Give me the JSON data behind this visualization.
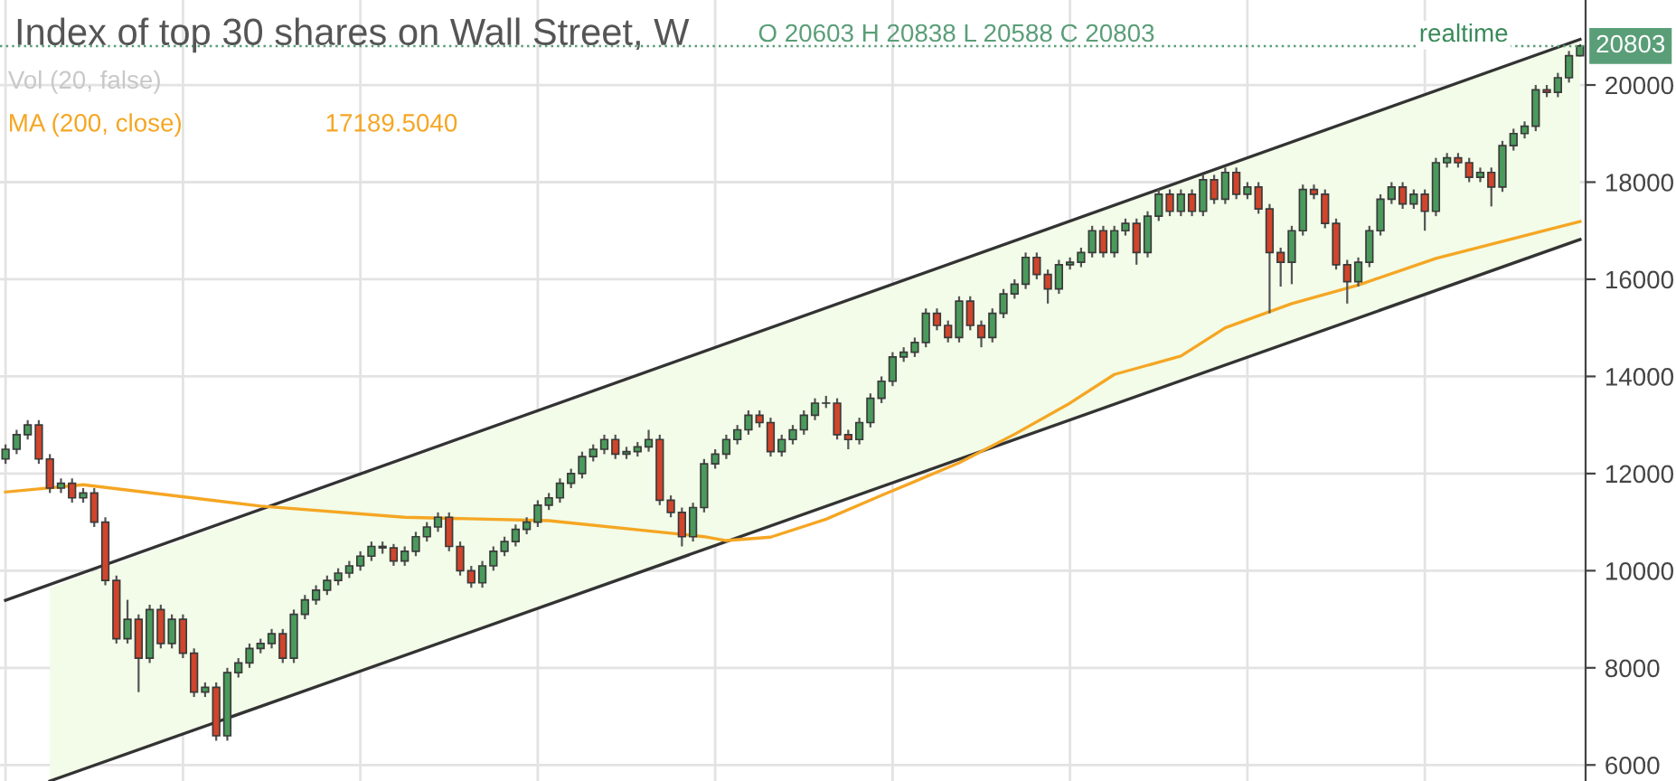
{
  "chart_data": {
    "type": "candlestick",
    "title": "Index of top 30 shares on Wall Street, W",
    "annotations": [
      "O 20603 H 20838 L 20588 C 20803",
      "Vol (20, false)",
      "17189.5040",
      "realtime"
    ],
    "categories": [
      null,
      null,
      null,
      null,
      null,
      null,
      null,
      null,
      null,
      null,
      null,
      null,
      null,
      null,
      null,
      null,
      null,
      null,
      null,
      null,
      null,
      null,
      null,
      null,
      null,
      null,
      null,
      null,
      null,
      null,
      null,
      null,
      null,
      null,
      null,
      null,
      null,
      null,
      null,
      null,
      null,
      null,
      null,
      null,
      null,
      null,
      null,
      null,
      null,
      null,
      null,
      null,
      null,
      null,
      null,
      null,
      null,
      null,
      null,
      null,
      null,
      null,
      null,
      null,
      null,
      null,
      null,
      null,
      null,
      null,
      null,
      null,
      null,
      null,
      null,
      null,
      null,
      null,
      null,
      null,
      null,
      null,
      null,
      null,
      null,
      null,
      null,
      null,
      null,
      null,
      null,
      null,
      null,
      null,
      null,
      null,
      null,
      null,
      null,
      null,
      null,
      null,
      null,
      null,
      null,
      null,
      null,
      null,
      null,
      null,
      null,
      null,
      null,
      null,
      null,
      null,
      null,
      null,
      null,
      null,
      null,
      null,
      null,
      null,
      null,
      null,
      null,
      null,
      null,
      null,
      null,
      null,
      null,
      null,
      null,
      null,
      null,
      null,
      null,
      null,
      null,
      null,
      null
    ],
    "ylim": [
      5670,
      21750
    ],
    "yticks": [
      6000,
      8000,
      10000,
      12000,
      14000,
      16000,
      18000,
      20000
    ],
    "tick_labels": "y",
    "grid": true,
    "legend": false,
    "colors": [
      "#4a9a5c",
      "#d0452b"
    ],
    "ref_lines": [
      {
        "axis": "y",
        "value": 20803,
        "label": "20803",
        "color": "#5a9e78",
        "line_style": "dotted"
      }
    ],
    "series": [
      {
        "type": "line",
        "color": "#333333",
        "values": [
          9390,
          null,
          null,
          null,
          null,
          null,
          null,
          null,
          null,
          null,
          null,
          null,
          null,
          null,
          null,
          null,
          null,
          null,
          null,
          null,
          null,
          null,
          null,
          null,
          null,
          null,
          null,
          null,
          null,
          null,
          null,
          null,
          null,
          null,
          null,
          null,
          null,
          null,
          null,
          null,
          null,
          null,
          null,
          null,
          null,
          null,
          null,
          null,
          null,
          null,
          null,
          null,
          null,
          null,
          null,
          null,
          null,
          null,
          null,
          null,
          null,
          null,
          null,
          null,
          null,
          null,
          null,
          null,
          null,
          null,
          null,
          null,
          null,
          null,
          null,
          null,
          null,
          null,
          null,
          null,
          null,
          null,
          null,
          null,
          null,
          null,
          null,
          null,
          null,
          null,
          null,
          null,
          null,
          null,
          null,
          null,
          null,
          null,
          null,
          null,
          null,
          null,
          null,
          null,
          null,
          null,
          null,
          null,
          null,
          null,
          null,
          null,
          null,
          null,
          null,
          null,
          null,
          null,
          null,
          null,
          null,
          null,
          null,
          null,
          null,
          null,
          null,
          null,
          null,
          null,
          null,
          null,
          null,
          null,
          null,
          null,
          null,
          null,
          null,
          null,
          null,
          null,
          20940
        ],
        "lower": [
          null,
          null,
          null,
          null,
          5670,
          null,
          null,
          null,
          null,
          null,
          null,
          null,
          null,
          null,
          null,
          null,
          null,
          null,
          null,
          null,
          null,
          null,
          null,
          null,
          null,
          null,
          null,
          null,
          null,
          null,
          null,
          null,
          null,
          null,
          null,
          null,
          null,
          null,
          null,
          null,
          null,
          null,
          null,
          null,
          null,
          null,
          null,
          null,
          null,
          null,
          null,
          null,
          null,
          null,
          null,
          null,
          null,
          null,
          null,
          null,
          null,
          null,
          null,
          null,
          null,
          null,
          null,
          null,
          null,
          null,
          null,
          null,
          null,
          null,
          null,
          null,
          null,
          null,
          null,
          null,
          null,
          null,
          null,
          null,
          null,
          null,
          null,
          null,
          null,
          null,
          null,
          null,
          null,
          null,
          null,
          null,
          null,
          null,
          null,
          null,
          null,
          null,
          null,
          null,
          null,
          null,
          null,
          null,
          null,
          null,
          null,
          null,
          null,
          null,
          null,
          null,
          null,
          null,
          null,
          null,
          null,
          null,
          null,
          null,
          null,
          null,
          null,
          null,
          null,
          null,
          null,
          null,
          null,
          null,
          null,
          null,
          null,
          null,
          null,
          null,
          null,
          null,
          16820
        ],
        "upper": [
          null,
          null,
          null,
          null,
          9654,
          null,
          null,
          null,
          null,
          null,
          null,
          null,
          null,
          null,
          null,
          null,
          null,
          null,
          null,
          null,
          null,
          null,
          null,
          null,
          null,
          null,
          null,
          null,
          null,
          null,
          null,
          null,
          null,
          null,
          null,
          null,
          null,
          null,
          null,
          null,
          null,
          null,
          null,
          null,
          null,
          null,
          null,
          null,
          null,
          null,
          null,
          null,
          null,
          null,
          null,
          null,
          null,
          null,
          null,
          null,
          null,
          null,
          null,
          null,
          null,
          null,
          null,
          null,
          null,
          null,
          null,
          null,
          null,
          null,
          null,
          null,
          null,
          null,
          null,
          null,
          null,
          null,
          null,
          null,
          null,
          null,
          null,
          null,
          null,
          null,
          null,
          null,
          null,
          null,
          null,
          null,
          null,
          null,
          null,
          null,
          null,
          null,
          null,
          null,
          null,
          null,
          null,
          null,
          null,
          null,
          null,
          null,
          null,
          null,
          null,
          null,
          null,
          null,
          null,
          null,
          null,
          null,
          null,
          null,
          null,
          null,
          null,
          null,
          null,
          null,
          null,
          null,
          null,
          null,
          null,
          null,
          null,
          null,
          null,
          null,
          null,
          null,
          20940
        ]
      },
      {
        "type": "line",
        "color": "#333333",
        "values": [
          null,
          null,
          null,
          null,
          5670,
          null,
          null,
          null,
          null,
          null,
          null,
          null,
          null,
          null,
          null,
          null,
          null,
          null,
          null,
          null,
          null,
          null,
          null,
          null,
          null,
          null,
          null,
          null,
          null,
          null,
          null,
          null,
          null,
          null,
          null,
          null,
          null,
          null,
          null,
          null,
          null,
          null,
          null,
          null,
          null,
          null,
          null,
          null,
          null,
          null,
          null,
          null,
          null,
          null,
          null,
          null,
          null,
          null,
          null,
          null,
          null,
          null,
          null,
          null,
          null,
          null,
          null,
          null,
          null,
          null,
          null,
          null,
          null,
          null,
          null,
          null,
          null,
          null,
          null,
          null,
          null,
          null,
          null,
          null,
          null,
          null,
          null,
          null,
          null,
          null,
          null,
          null,
          null,
          null,
          null,
          null,
          null,
          null,
          null,
          null,
          null,
          null,
          null,
          null,
          null,
          null,
          null,
          null,
          null,
          null,
          null,
          null,
          null,
          null,
          null,
          null,
          null,
          null,
          null,
          null,
          null,
          null,
          null,
          null,
          null,
          null,
          null,
          null,
          null,
          null,
          null,
          null,
          null,
          null,
          null,
          null,
          null,
          null,
          null,
          null,
          null,
          null,
          16820
        ]
      },
      {
        "type": "line",
        "name": "MA (200, close)",
        "color": "#f5a623",
        "values": [
          11620,
          null,
          null,
          null,
          null,
          null,
          null,
          11770,
          null,
          null,
          null,
          null,
          null,
          null,
          null,
          null,
          null,
          null,
          null,
          null,
          null,
          null,
          null,
          11330,
          null,
          null,
          null,
          null,
          null,
          null,
          null,
          null,
          null,
          null,
          null,
          null,
          11100,
          null,
          null,
          null,
          null,
          null,
          null,
          null,
          null,
          null,
          null,
          null,
          null,
          11030,
          null,
          null,
          null,
          null,
          null,
          null,
          null,
          null,
          null,
          null,
          null,
          null,
          null,
          10700,
          null,
          10620,
          null,
          null,
          null,
          10690,
          null,
          null,
          null,
          null,
          11060,
          null,
          null,
          null,
          null,
          11550,
          null,
          null,
          null,
          null,
          null,
          null,
          12220,
          null,
          null,
          null,
          null,
          12810,
          null,
          null,
          null,
          null,
          13450,
          null,
          null,
          null,
          14040,
          null,
          null,
          null,
          null,
          null,
          14420,
          null,
          null,
          null,
          15000,
          null,
          null,
          null,
          null,
          null,
          15500,
          null,
          null,
          null,
          null,
          null,
          15880,
          null,
          null,
          null,
          null,
          null,
          null,
          16430,
          null,
          null,
          null,
          null,
          null,
          null,
          16840,
          null,
          null,
          null,
          null,
          null,
          17190
        ]
      },
      {
        "ohlc": [
          [
            12300,
            12600,
            12200,
            12500
          ],
          [
            12500,
            12900,
            12400,
            12800
          ],
          [
            12800,
            13100,
            12700,
            13000
          ],
          [
            13000,
            13100,
            12200,
            12300
          ],
          [
            12300,
            12400,
            11600,
            11700
          ],
          [
            11700,
            11900,
            11600,
            11800
          ],
          [
            11800,
            11900,
            11400,
            11500
          ],
          [
            11500,
            11700,
            11400,
            11600
          ],
          [
            11600,
            11700,
            10900,
            11000
          ],
          [
            11000,
            11100,
            9700,
            9800
          ],
          [
            9800,
            9900,
            8500,
            8600
          ],
          [
            8600,
            9400,
            8500,
            9000
          ],
          [
            9000,
            9100,
            7500,
            8200
          ],
          [
            8200,
            9300,
            8100,
            9200
          ],
          [
            9200,
            9300,
            8400,
            8500
          ],
          [
            8500,
            9100,
            8400,
            9000
          ],
          [
            9000,
            9100,
            8200,
            8300
          ],
          [
            8300,
            8400,
            7400,
            7500
          ],
          [
            7500,
            7700,
            7400,
            7600
          ],
          [
            7600,
            7700,
            6500,
            6600
          ],
          [
            6600,
            8000,
            6500,
            7900
          ],
          [
            7900,
            8200,
            7800,
            8100
          ],
          [
            8100,
            8500,
            8000,
            8400
          ],
          [
            8400,
            8600,
            8300,
            8500
          ],
          [
            8500,
            8800,
            8400,
            8700
          ],
          [
            8700,
            8800,
            8100,
            8200
          ],
          [
            8200,
            9200,
            8100,
            9100
          ],
          [
            9100,
            9500,
            9000,
            9400
          ],
          [
            9400,
            9700,
            9300,
            9600
          ],
          [
            9600,
            9900,
            9500,
            9800
          ],
          [
            9800,
            10050,
            9700,
            9950
          ],
          [
            9950,
            10200,
            9850,
            10100
          ],
          [
            10100,
            10400,
            10000,
            10300
          ],
          [
            10300,
            10600,
            10200,
            10500
          ],
          [
            10500,
            10600,
            10350,
            10470
          ],
          [
            10470,
            10550,
            10100,
            10200
          ],
          [
            10200,
            10500,
            10100,
            10400
          ],
          [
            10400,
            10800,
            10300,
            10700
          ],
          [
            10700,
            11000,
            10600,
            10900
          ],
          [
            10900,
            11200,
            10800,
            11100
          ],
          [
            11100,
            11200,
            10400,
            10500
          ],
          [
            10500,
            10600,
            9900,
            10000
          ],
          [
            10000,
            10100,
            9650,
            9750
          ],
          [
            9750,
            10200,
            9650,
            10100
          ],
          [
            10100,
            10500,
            10000,
            10400
          ],
          [
            10400,
            10700,
            10300,
            10600
          ],
          [
            10600,
            10950,
            10500,
            10850
          ],
          [
            10850,
            11100,
            10750,
            11000
          ],
          [
            11000,
            11450,
            10900,
            11350
          ],
          [
            11350,
            11600,
            11250,
            11500
          ],
          [
            11500,
            11900,
            11400,
            11800
          ],
          [
            11800,
            12100,
            11700,
            12000
          ],
          [
            12000,
            12450,
            11900,
            12350
          ],
          [
            12350,
            12600,
            12250,
            12500
          ],
          [
            12500,
            12800,
            12400,
            12700
          ],
          [
            12700,
            12800,
            12300,
            12400
          ],
          [
            12400,
            12550,
            12300,
            12450
          ],
          [
            12450,
            12650,
            12350,
            12550
          ],
          [
            12550,
            12900,
            12450,
            12700
          ],
          [
            12700,
            12800,
            11350,
            11450
          ],
          [
            11450,
            11550,
            11100,
            11200
          ],
          [
            11200,
            11300,
            10500,
            10700
          ],
          [
            10700,
            11400,
            10600,
            11300
          ],
          [
            11300,
            12300,
            11200,
            12200
          ],
          [
            12200,
            12500,
            12100,
            12400
          ],
          [
            12400,
            12800,
            12300,
            12700
          ],
          [
            12700,
            13000,
            12600,
            12900
          ],
          [
            12900,
            13300,
            12800,
            13200
          ],
          [
            13200,
            13300,
            12950,
            13050
          ],
          [
            13050,
            13150,
            12350,
            12450
          ],
          [
            12450,
            12800,
            12350,
            12700
          ],
          [
            12700,
            13000,
            12600,
            12900
          ],
          [
            12900,
            13300,
            12800,
            13200
          ],
          [
            13200,
            13550,
            13100,
            13450
          ],
          [
            13450,
            13600,
            13350,
            13450
          ],
          [
            13450,
            13550,
            12700,
            12800
          ],
          [
            12800,
            12900,
            12500,
            12700
          ],
          [
            12700,
            13150,
            12600,
            13050
          ],
          [
            13050,
            13650,
            12950,
            13550
          ],
          [
            13550,
            14000,
            13450,
            13900
          ],
          [
            13900,
            14500,
            13800,
            14400
          ],
          [
            14400,
            14600,
            14300,
            14500
          ],
          [
            14500,
            14800,
            14400,
            14700
          ],
          [
            14700,
            15400,
            14600,
            15300
          ],
          [
            15300,
            15400,
            14950,
            15050
          ],
          [
            15050,
            15150,
            14700,
            14800
          ],
          [
            14800,
            15650,
            14700,
            15550
          ],
          [
            15550,
            15650,
            14950,
            15050
          ],
          [
            15050,
            15150,
            14600,
            14800
          ],
          [
            14800,
            15400,
            14700,
            15300
          ],
          [
            15300,
            15800,
            15200,
            15700
          ],
          [
            15700,
            16000,
            15600,
            15900
          ],
          [
            15900,
            16550,
            15800,
            16450
          ],
          [
            16450,
            16550,
            16000,
            16100
          ],
          [
            16100,
            16200,
            15500,
            15800
          ],
          [
            15800,
            16400,
            15700,
            16300
          ],
          [
            16300,
            16450,
            16200,
            16350
          ],
          [
            16350,
            16650,
            16250,
            16550
          ],
          [
            16550,
            17100,
            16450,
            17000
          ],
          [
            17000,
            17100,
            16450,
            16550
          ],
          [
            16550,
            17100,
            16450,
            17000
          ],
          [
            17000,
            17250,
            16900,
            17150
          ],
          [
            17150,
            17250,
            16300,
            16550
          ],
          [
            16550,
            17400,
            16450,
            17300
          ],
          [
            17300,
            17850,
            17200,
            17750
          ],
          [
            17750,
            17850,
            17300,
            17400
          ],
          [
            17400,
            17850,
            17300,
            17750
          ],
          [
            17750,
            17850,
            17300,
            17400
          ],
          [
            17400,
            18150,
            17300,
            18050
          ],
          [
            18050,
            18150,
            17550,
            17650
          ],
          [
            17650,
            18300,
            17550,
            18200
          ],
          [
            18200,
            18300,
            17650,
            17750
          ],
          [
            17750,
            18000,
            17650,
            17900
          ],
          [
            17900,
            18000,
            17350,
            17450
          ],
          [
            17450,
            17550,
            15300,
            16550
          ],
          [
            16550,
            16650,
            15850,
            16350
          ],
          [
            16350,
            17100,
            15900,
            17000
          ],
          [
            17000,
            17950,
            16900,
            17850
          ],
          [
            17850,
            17950,
            17650,
            17750
          ],
          [
            17750,
            17850,
            17050,
            17150
          ],
          [
            17150,
            17250,
            16200,
            16300
          ],
          [
            16300,
            16400,
            15500,
            15950
          ],
          [
            15950,
            16450,
            15850,
            16350
          ],
          [
            16350,
            17100,
            16250,
            17000
          ],
          [
            17000,
            17750,
            16900,
            17650
          ],
          [
            17650,
            18000,
            17550,
            17900
          ],
          [
            17900,
            18000,
            17450,
            17550
          ],
          [
            17550,
            17850,
            17450,
            17750
          ],
          [
            17750,
            17850,
            17000,
            17400
          ],
          [
            17400,
            18500,
            17300,
            18400
          ],
          [
            18400,
            18600,
            18300,
            18500
          ],
          [
            18500,
            18600,
            18300,
            18400
          ],
          [
            18400,
            18500,
            18000,
            18100
          ],
          [
            18100,
            18300,
            18000,
            18200
          ],
          [
            18200,
            18300,
            17500,
            17900
          ],
          [
            17900,
            18850,
            17800,
            18750
          ],
          [
            18750,
            19100,
            18650,
            19000
          ],
          [
            19000,
            19250,
            18900,
            19150
          ],
          [
            19150,
            20000,
            19050,
            19900
          ],
          [
            19900,
            20000,
            19750,
            19850
          ],
          [
            19850,
            20250,
            19750,
            20150
          ],
          [
            20150,
            20700,
            20050,
            20603
          ],
          [
            20603,
            20838,
            20588,
            20803
          ]
        ]
      }
    ]
  }
}
